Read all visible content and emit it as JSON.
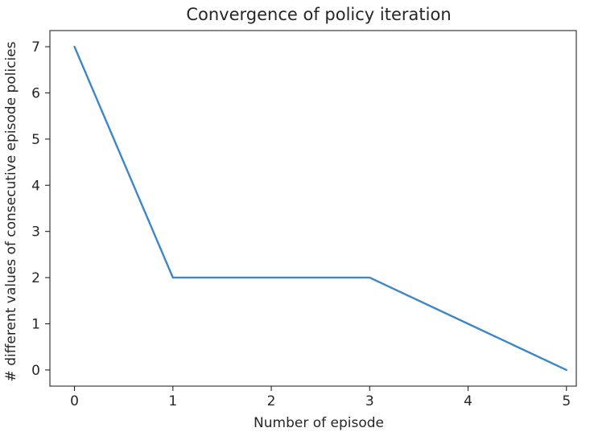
{
  "chart_data": {
    "type": "line",
    "title": "Convergence of policy iteration",
    "xlabel": "Number of episode",
    "ylabel": "# different values of consecutive episode policies",
    "x": [
      0,
      1,
      2,
      3,
      4,
      5
    ],
    "series": [
      {
        "values": [
          7,
          2,
          2,
          2,
          1,
          0
        ],
        "color": "#3d87c4"
      }
    ],
    "xticks": [
      0,
      1,
      2,
      3,
      4,
      5
    ],
    "yticks": [
      0,
      1,
      2,
      3,
      4,
      5,
      6,
      7
    ],
    "xlim": [
      -0.25,
      5.1
    ],
    "ylim": [
      -0.35,
      7.35
    ],
    "grid": false,
    "legend": "none"
  }
}
